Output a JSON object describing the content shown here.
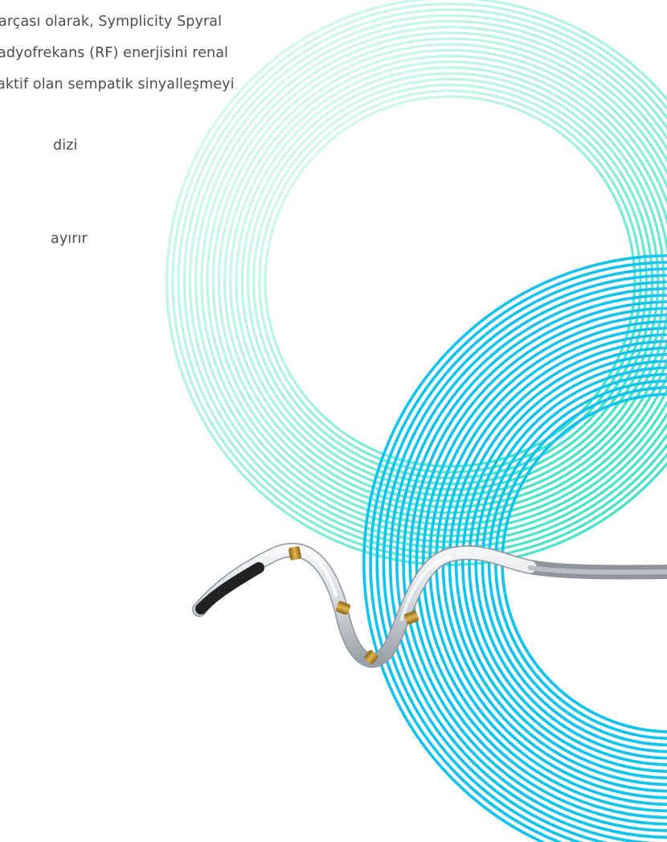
{
  "body_text": {
    "lines": [
      "arçası olarak, Symplicity Spyral",
      "adyofrekans (RF) enerjisini renal",
      "aktif olan sempatik sinyalleşmeyi",
      "dizi",
      "ayırır"
    ]
  },
  "colors": {
    "text": "#4d4d4d",
    "blue_ring": "#12c3ee",
    "green_ring": "#1fdcc0",
    "light_ring": "#cdeff9",
    "electrode_gold": "#c99a2e",
    "catheter_tip": "#222222",
    "catheter_body": "#d9dde2"
  },
  "figure": {
    "subject": "catheter-over-concentric-rings"
  }
}
